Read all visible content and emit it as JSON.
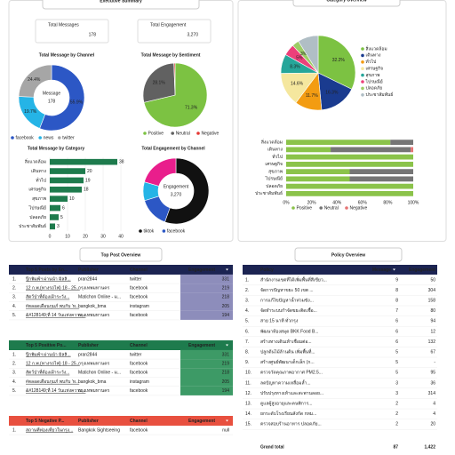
{
  "header": {
    "title": "Executive Summary",
    "right_title": "Category Overview",
    "bottom_left_title": "Top Post Overview",
    "bottom_right_title": "Policy Overview"
  },
  "kpis": [
    {
      "label": "Total Messages",
      "value": 178
    },
    {
      "label": "Total Engagement",
      "value": 3270,
      "value_label": "3,270"
    }
  ],
  "chart_data": [
    {
      "type": "donut",
      "title": "Total Message by Channel",
      "center_label": "Message",
      "center_value": 178,
      "categories": [
        "facebook",
        "news",
        "twitter"
      ],
      "values": [
        55.9,
        19.7,
        24.4
      ],
      "value_labels": [
        "55.9%",
        "19.7%",
        "24.4%"
      ],
      "colors": [
        "#2c57c5",
        "#25b4e6",
        "#a6a6a6"
      ]
    },
    {
      "type": "pie",
      "title": "Total Message by Sentiment",
      "categories": [
        "Positive",
        "Neutral",
        "Negative"
      ],
      "values": [
        71.3,
        28.1,
        0.6
      ],
      "value_labels": [
        "71.3%",
        "28.1%",
        null
      ],
      "colors": [
        "#7cc242",
        "#616161",
        "#e53935"
      ]
    },
    {
      "type": "hbar",
      "title": "Total Message by Category",
      "categories": [
        "สิ่งแวดล้อม",
        "เดินทาง",
        "ทั่วไป",
        "เศรษฐกิจ",
        "สุขภาพ",
        "ไปรษณีย์",
        "ปลอดภัย",
        "ประชาสัมพันธ์"
      ],
      "values": [
        38,
        20,
        19,
        18,
        10,
        6,
        5,
        3
      ],
      "color": "#1e7b4d",
      "xlim": [
        0,
        40
      ],
      "xticks": [
        0,
        10,
        20,
        30,
        40
      ],
      "grid": true
    },
    {
      "type": "donut",
      "title": "Total Engagement by Channel",
      "center_label": "Engagement",
      "center_value": 3270,
      "center_value_label": "3,270",
      "categories": [
        "tiktok",
        "facebook",
        null,
        null
      ],
      "values": [
        55.5,
        14.8,
        9.2,
        20.5
      ],
      "colors": [
        "#111111",
        "#2c57c5",
        "#25b4e6",
        "#e91e8c"
      ]
    },
    {
      "type": "pie",
      "categories": [
        "สิ่งแวดล้อม",
        "เดินทาง",
        "ทั่วไป",
        "เศรษฐกิจ",
        "สุขภาพ",
        "ไปรษณีย์",
        "ปลอดภัย",
        "ประชาสัมพันธ์"
      ],
      "values": [
        32.2,
        16.3,
        11.7,
        14.6,
        8.3,
        5.0,
        3.0,
        8.9
      ],
      "value_labels": [
        "32.2%",
        "16.3%",
        "11.7%",
        "14.6%",
        "8.3%",
        "5%",
        "3%",
        null
      ],
      "colors": [
        "#7cc242",
        "#1a3b8f",
        "#f39c12",
        "#f5e79e",
        "#26a69a",
        "#ec407a",
        "#9ccc65",
        "#b0bec5"
      ]
    },
    {
      "type": "stacked_hbar",
      "categories": [
        "สิ่งแวดล้อม",
        "เดินทาง",
        "ทั่วไป",
        "เศรษฐกิจ",
        "สุขภาพ",
        "ไปรษณีย์",
        "ปลอดภัย",
        "ประชาสัมพันธ์"
      ],
      "series": [
        {
          "name": "Positive",
          "color": "#8bc34a",
          "values": [
            82,
            35,
            100,
            100,
            50,
            50,
            100,
            100
          ]
        },
        {
          "name": "Neutral",
          "color": "#757575",
          "values": [
            18,
            63,
            0,
            0,
            50,
            50,
            0,
            0
          ]
        },
        {
          "name": "Negative",
          "color": "#e57373",
          "values": [
            0,
            2,
            0,
            0,
            0,
            0,
            0,
            0
          ]
        }
      ],
      "xlim": [
        0,
        100
      ],
      "xticks": [
        {
          "value": 0,
          "label": "0%"
        },
        {
          "value": 20,
          "label": "20%"
        },
        {
          "value": 40,
          "label": "40%"
        },
        {
          "value": 60,
          "label": "60%"
        },
        {
          "value": 80,
          "label": "80%"
        },
        {
          "value": 100,
          "label": "100%"
        }
      ],
      "grid": false
    }
  ],
  "top_posts": {
    "columns": [
      "Top 5 Posts by En...",
      "Publisher",
      "Channel",
      "Engagement"
    ],
    "rows": [
      [
        "1.",
        "ปุ๊กพิมพ์ฯ ผ่านนำ มิลลิ...",
        "pran2844",
        "twitter",
        331
      ],
      [
        "2.",
        "12 ก.พ.(ทางรถไฟ) 18 - 25...",
        "กรุงเทพมหานคร",
        "facebook",
        219
      ],
      [
        "3.",
        "สัตว์ป่าที่ต้องเฝ้าระวัง...",
        "Matichon Online - ม...",
        "facebook",
        218
      ],
      [
        "4.",
        "#ตลอดเดือนกุมภ์ พบกับ 'ห...",
        "bangkok_bma",
        "instagram",
        205
      ],
      [
        "5.",
        "&#128149;ที่ 14 วันแห่งความ...",
        "กรุงเทพมหานคร",
        "facebook",
        194
      ]
    ]
  },
  "top_positive_posts": {
    "columns": [
      "Top 5 Positive Po...",
      "Publisher",
      "Channel",
      "Engagement"
    ],
    "rows": [
      [
        "1.",
        "ปุ๊กพิมพ์ฯ ผ่านนำ มิลลิ...",
        "pran2844",
        "twitter",
        331
      ],
      [
        "2.",
        "12 ก.พ.(ทางรถไฟ) 18 - 25...",
        "กรุงเทพมหานคร",
        "facebook",
        219
      ],
      [
        "3.",
        "สัตว์ป่าที่ต้องเฝ้าระวัง...",
        "Matichon Online - ม...",
        "facebook",
        218
      ],
      [
        "4.",
        "#ตลอดเดือนกุมภ์ พบกับ 'ห...",
        "bangkok_bma",
        "instagram",
        205
      ],
      [
        "5.",
        "&#128149;ที่ 14 วันแห่งความ...",
        "กรุงเทพมหานคร",
        "facebook",
        194
      ]
    ]
  },
  "top_negative_posts": {
    "columns": [
      "Top 5 Negative P...",
      "Publisher",
      "Channel",
      "Engagement"
    ],
    "rows": [
      [
        "1.",
        "สถานที่ท่องเที่ยวในกรุง...",
        "Bangkok Sightseeing",
        "facebook",
        "null"
      ]
    ]
  },
  "policy_table": {
    "columns": [
      "Policy",
      "Message",
      "Engagement"
    ],
    "rows": [
      [
        "1.",
        "สำนักงานเขตที่ได้เพิ่มพื้นที่สีเขียว...",
        9,
        50
      ],
      [
        "2.",
        "จัดการปัญหาขยะ 50 เขต ...",
        8,
        304
      ],
      [
        "3.",
        "การแก้ไขปัญหาน้ำท่วมขัง...",
        8,
        158
      ],
      [
        "4.",
        "จัดทำระบบกำจัดขยะติดเชื้อ...",
        7,
        80
      ],
      [
        "5.",
        "สาย 15 นาที ทั่วกรุง",
        6,
        94
      ],
      [
        "6.",
        "พัฒนาห้องสมุด BKK Food B...",
        6,
        12
      ],
      [
        "7.",
        "สร้างทางเดินเท้าเชื่อมต่อ...",
        6,
        132
      ],
      [
        "8.",
        "ปลูกต้นไม้ล้านต้น เพิ่มพื้นที่...",
        5,
        67
      ],
      [
        "9.",
        "สร้างศูนย์พัฒนาเด็กเล็ก (ก...",
        5,
        "-"
      ],
      [
        "10.",
        "ตรวจวัดคุณภาพอากาศ PM2.5...",
        5,
        95
      ],
      [
        "11.",
        "ลดปัญหาความเหลื่อมล้ำ...",
        3,
        36
      ],
      [
        "12.",
        "ปรับปรุงทางเท้าและสะพานลอย...",
        3,
        314
      ],
      [
        "13.",
        "ดูแลผู้สูงอายุและคนพิการ...",
        2,
        4
      ],
      [
        "14.",
        "ยกระดับโรงเรียนสังกัด กทม...",
        2,
        4
      ],
      [
        "15.",
        "ตรวจสอบร้านอาหาร ปลอดภัย...",
        2,
        20
      ]
    ],
    "total": [
      "Grand total",
      87,
      "1,422"
    ]
  }
}
